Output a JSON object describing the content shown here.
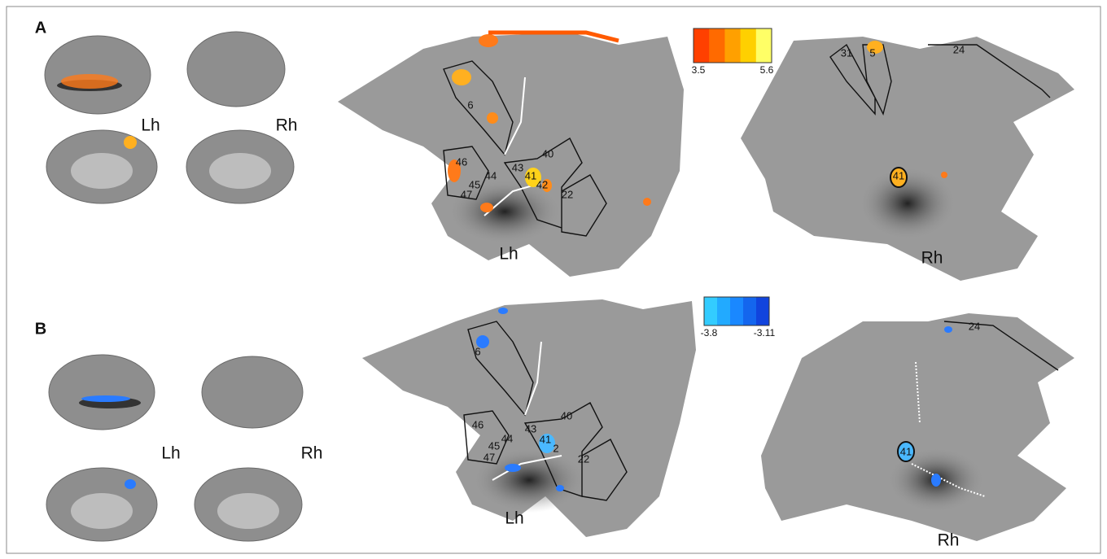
{
  "panels": [
    {
      "label": "A",
      "brain_labels": [
        "Lh",
        "Rh"
      ],
      "flatmap_labels": [
        "Lh",
        "Rh"
      ],
      "areas_lh": [
        "6",
        "46",
        "44",
        "45",
        "47",
        "43",
        "41",
        "42",
        "40",
        "22"
      ],
      "areas_rh": [
        "31",
        "5",
        "24",
        "41"
      ],
      "colorbar": {
        "min": "3.5",
        "max": "5.6"
      }
    },
    {
      "label": "B",
      "brain_labels": [
        "Lh",
        "Rh"
      ],
      "flatmap_labels": [
        "Lh",
        "Rh"
      ],
      "areas_lh": [
        "6",
        "46",
        "45",
        "44",
        "47",
        "43",
        "41",
        "2",
        "40",
        "22"
      ],
      "areas_rh": [
        "24",
        "41"
      ],
      "colorbar": {
        "min": "-3.8",
        "max": "-3.11"
      }
    }
  ]
}
